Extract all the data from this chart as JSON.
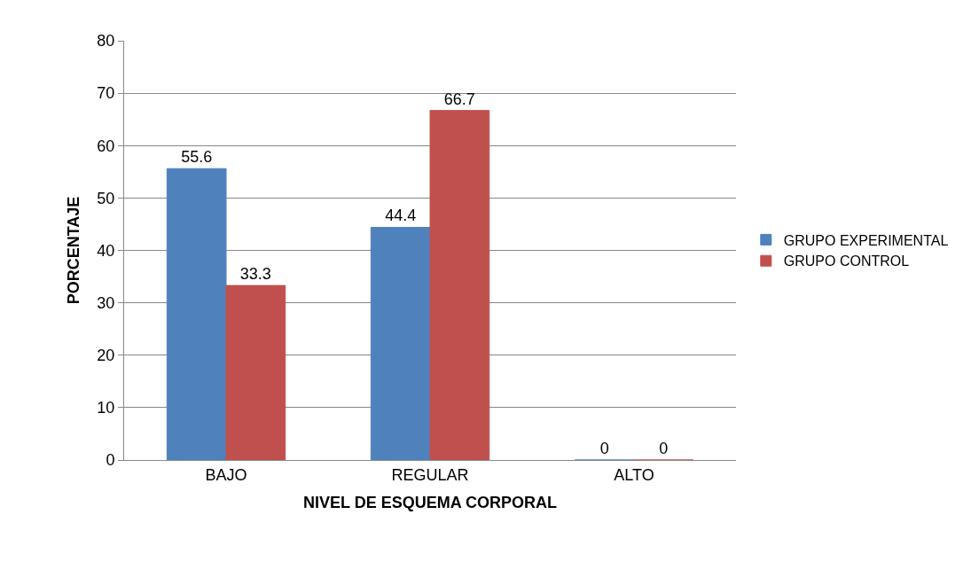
{
  "chart_data": {
    "type": "bar",
    "xlabel": "NIVEL DE ESQUEMA CORPORAL",
    "ylabel": "PORCENTAJE",
    "categories": [
      "BAJO",
      "REGULAR",
      "ALTO"
    ],
    "series": [
      {
        "name": "GRUPO EXPERIMENTAL",
        "color": "#4f81bd",
        "values": [
          55.6,
          44.4,
          0
        ]
      },
      {
        "name": "GRUPO CONTROL",
        "color": "#c0504d",
        "values": [
          33.3,
          66.7,
          0
        ]
      }
    ],
    "ylim": [
      0,
      80
    ],
    "yticks": [
      0,
      10,
      20,
      30,
      40,
      50,
      60,
      70,
      80
    ],
    "grid": "y",
    "legend": "right",
    "data_labels": true
  }
}
